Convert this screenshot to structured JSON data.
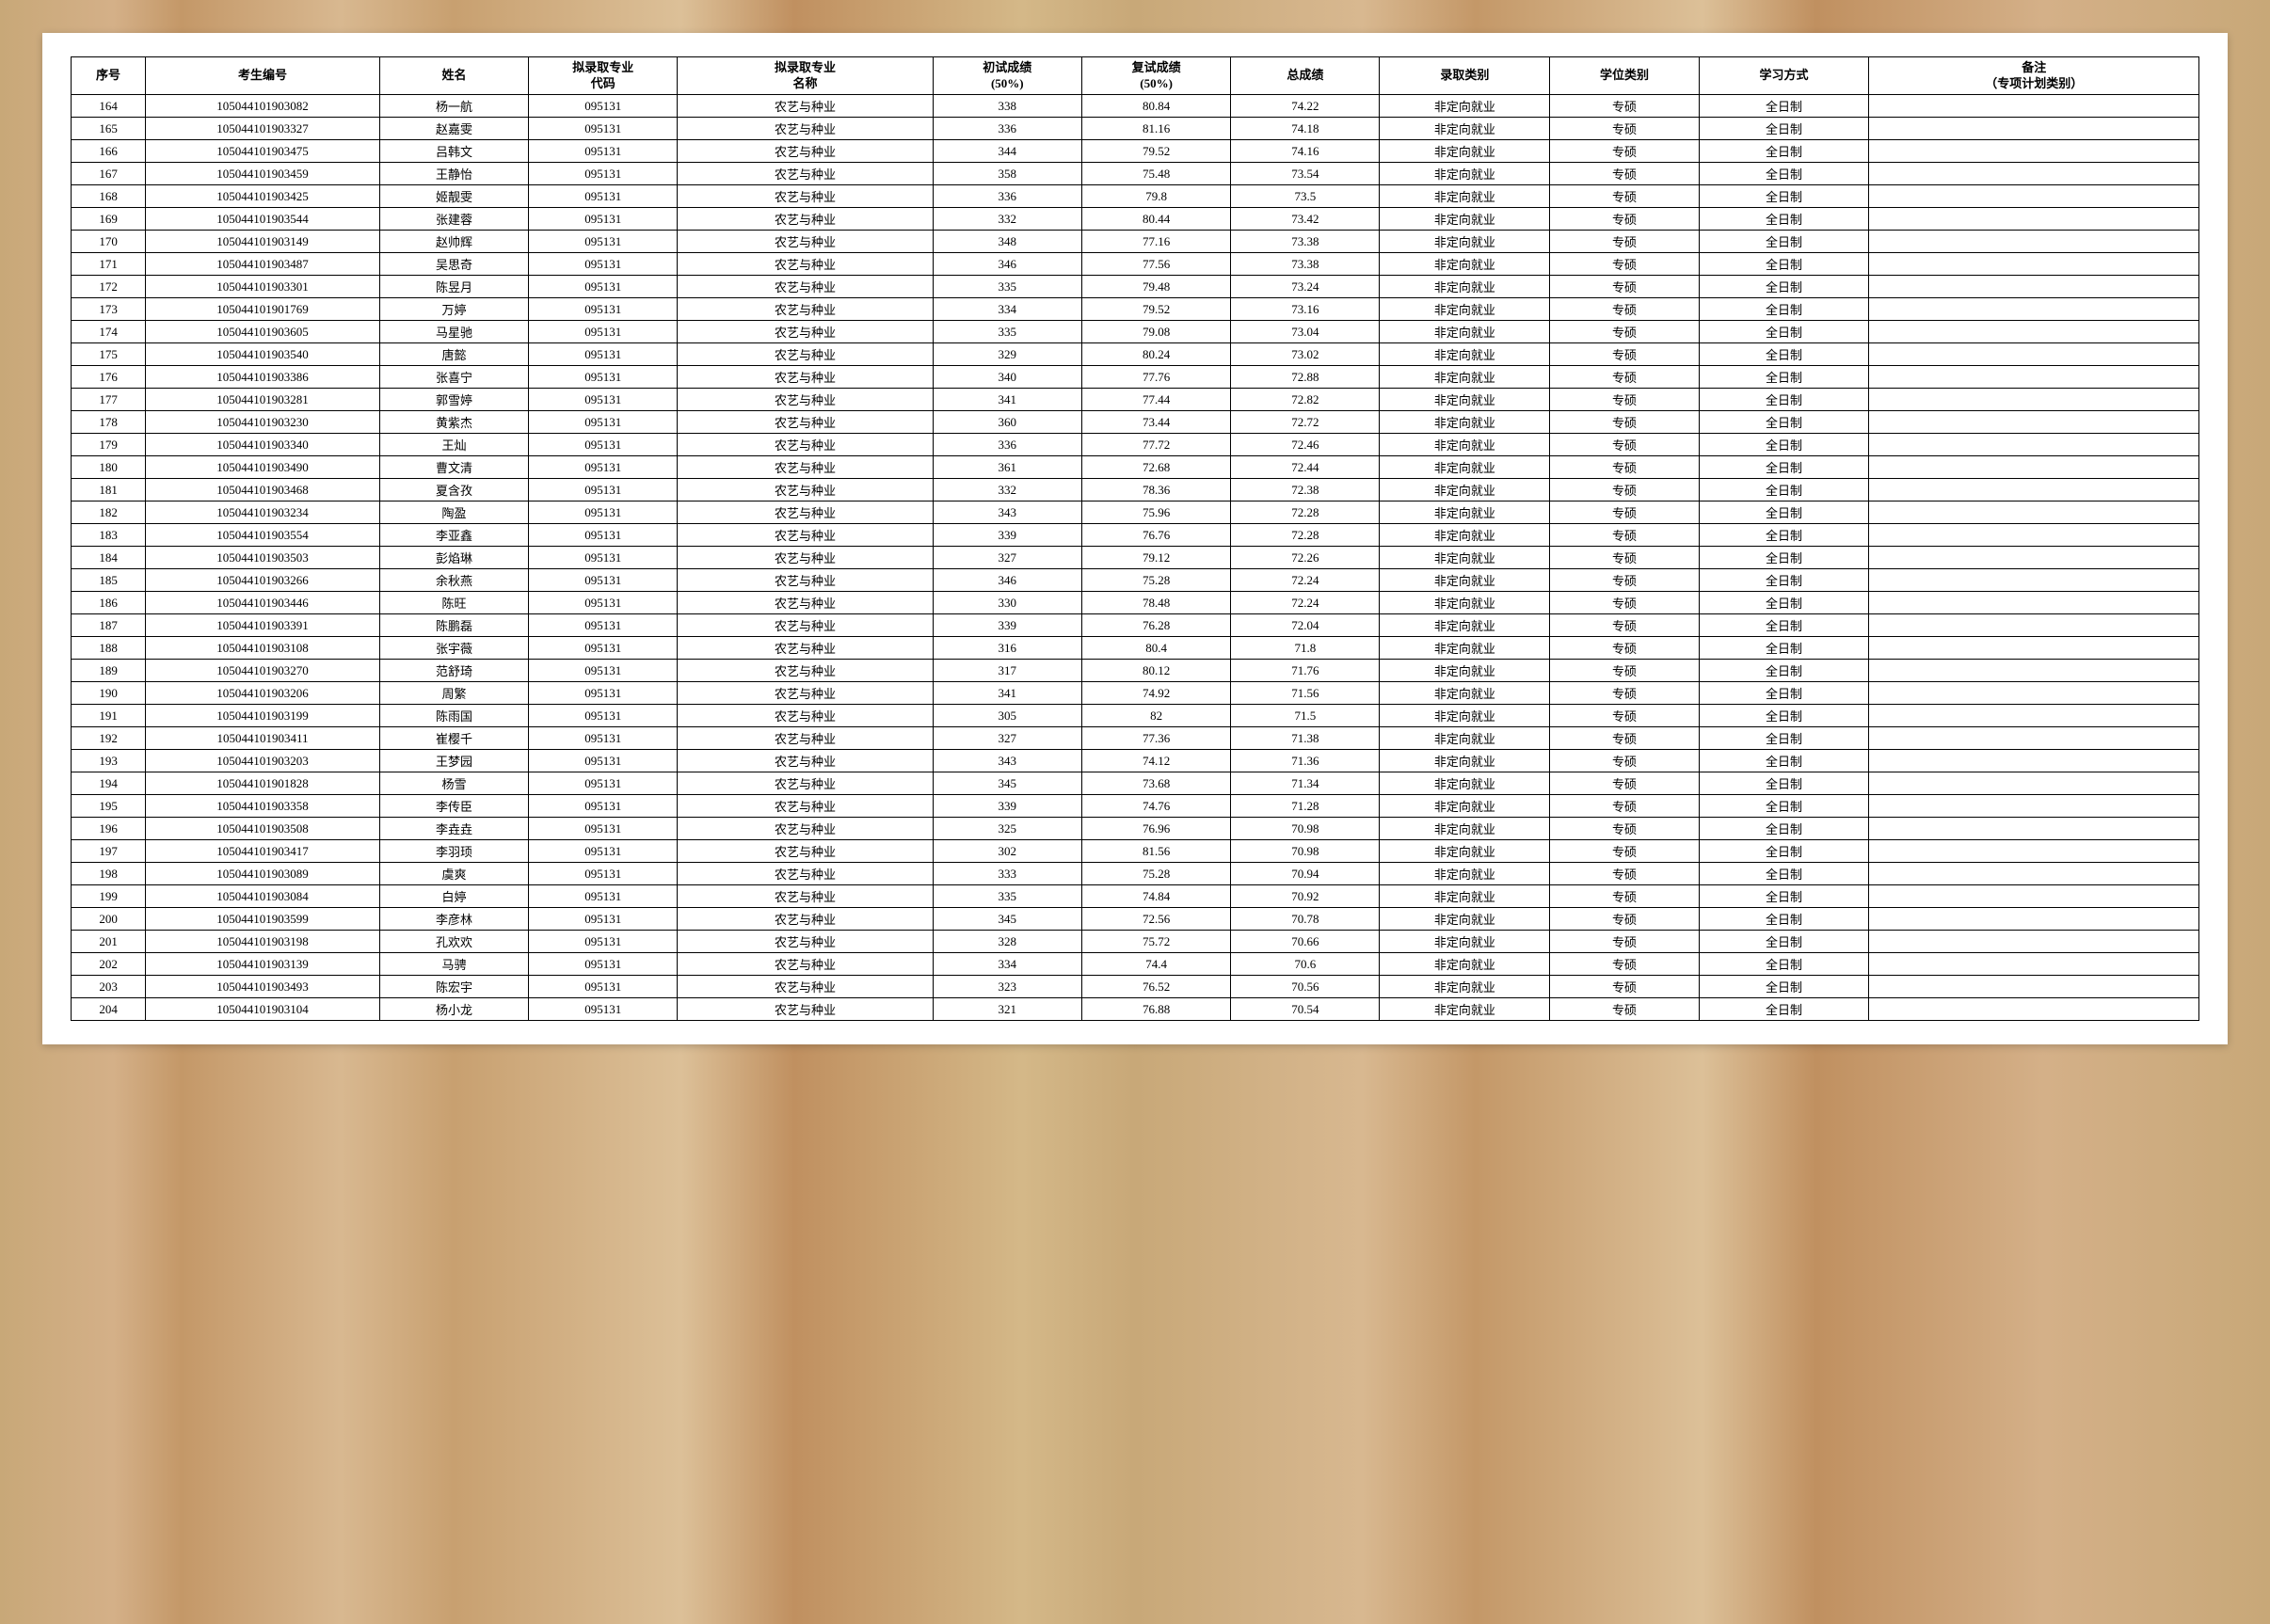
{
  "table": {
    "headers": {
      "seq": "序号",
      "examId": "考生编号",
      "name": "姓名",
      "majorCode": "拟录取专业\n代码",
      "majorName": "拟录取专业\n名称",
      "firstScore": "初试成绩\n(50%)",
      "secondScore": "复试成绩\n(50%)",
      "totalScore": "总成绩",
      "admitType": "录取类别",
      "degreeType": "学位类别",
      "studyMode": "学习方式",
      "remark": "备注\n（专项计划类别）"
    },
    "rows": [
      {
        "seq": "164",
        "id": "105044101903082",
        "name": "杨一航",
        "code": "095131",
        "major": "农艺与种业",
        "s1": "338",
        "s2": "80.84",
        "total": "74.22",
        "admit": "非定向就业",
        "degree": "专硕",
        "mode": "全日制",
        "remark": ""
      },
      {
        "seq": "165",
        "id": "105044101903327",
        "name": "赵嘉雯",
        "code": "095131",
        "major": "农艺与种业",
        "s1": "336",
        "s2": "81.16",
        "total": "74.18",
        "admit": "非定向就业",
        "degree": "专硕",
        "mode": "全日制",
        "remark": ""
      },
      {
        "seq": "166",
        "id": "105044101903475",
        "name": "吕韩文",
        "code": "095131",
        "major": "农艺与种业",
        "s1": "344",
        "s2": "79.52",
        "total": "74.16",
        "admit": "非定向就业",
        "degree": "专硕",
        "mode": "全日制",
        "remark": ""
      },
      {
        "seq": "167",
        "id": "105044101903459",
        "name": "王静怡",
        "code": "095131",
        "major": "农艺与种业",
        "s1": "358",
        "s2": "75.48",
        "total": "73.54",
        "admit": "非定向就业",
        "degree": "专硕",
        "mode": "全日制",
        "remark": ""
      },
      {
        "seq": "168",
        "id": "105044101903425",
        "name": "姬靓雯",
        "code": "095131",
        "major": "农艺与种业",
        "s1": "336",
        "s2": "79.8",
        "total": "73.5",
        "admit": "非定向就业",
        "degree": "专硕",
        "mode": "全日制",
        "remark": ""
      },
      {
        "seq": "169",
        "id": "105044101903544",
        "name": "张建蓉",
        "code": "095131",
        "major": "农艺与种业",
        "s1": "332",
        "s2": "80.44",
        "total": "73.42",
        "admit": "非定向就业",
        "degree": "专硕",
        "mode": "全日制",
        "remark": ""
      },
      {
        "seq": "170",
        "id": "105044101903149",
        "name": "赵帅辉",
        "code": "095131",
        "major": "农艺与种业",
        "s1": "348",
        "s2": "77.16",
        "total": "73.38",
        "admit": "非定向就业",
        "degree": "专硕",
        "mode": "全日制",
        "remark": ""
      },
      {
        "seq": "171",
        "id": "105044101903487",
        "name": "吴思奇",
        "code": "095131",
        "major": "农艺与种业",
        "s1": "346",
        "s2": "77.56",
        "total": "73.38",
        "admit": "非定向就业",
        "degree": "专硕",
        "mode": "全日制",
        "remark": ""
      },
      {
        "seq": "172",
        "id": "105044101903301",
        "name": "陈昱月",
        "code": "095131",
        "major": "农艺与种业",
        "s1": "335",
        "s2": "79.48",
        "total": "73.24",
        "admit": "非定向就业",
        "degree": "专硕",
        "mode": "全日制",
        "remark": ""
      },
      {
        "seq": "173",
        "id": "105044101901769",
        "name": "万婷",
        "code": "095131",
        "major": "农艺与种业",
        "s1": "334",
        "s2": "79.52",
        "total": "73.16",
        "admit": "非定向就业",
        "degree": "专硕",
        "mode": "全日制",
        "remark": ""
      },
      {
        "seq": "174",
        "id": "105044101903605",
        "name": "马星驰",
        "code": "095131",
        "major": "农艺与种业",
        "s1": "335",
        "s2": "79.08",
        "total": "73.04",
        "admit": "非定向就业",
        "degree": "专硕",
        "mode": "全日制",
        "remark": ""
      },
      {
        "seq": "175",
        "id": "105044101903540",
        "name": "唐懿",
        "code": "095131",
        "major": "农艺与种业",
        "s1": "329",
        "s2": "80.24",
        "total": "73.02",
        "admit": "非定向就业",
        "degree": "专硕",
        "mode": "全日制",
        "remark": ""
      },
      {
        "seq": "176",
        "id": "105044101903386",
        "name": "张喜宁",
        "code": "095131",
        "major": "农艺与种业",
        "s1": "340",
        "s2": "77.76",
        "total": "72.88",
        "admit": "非定向就业",
        "degree": "专硕",
        "mode": "全日制",
        "remark": ""
      },
      {
        "seq": "177",
        "id": "105044101903281",
        "name": "郭雪婷",
        "code": "095131",
        "major": "农艺与种业",
        "s1": "341",
        "s2": "77.44",
        "total": "72.82",
        "admit": "非定向就业",
        "degree": "专硕",
        "mode": "全日制",
        "remark": ""
      },
      {
        "seq": "178",
        "id": "105044101903230",
        "name": "黄紫杰",
        "code": "095131",
        "major": "农艺与种业",
        "s1": "360",
        "s2": "73.44",
        "total": "72.72",
        "admit": "非定向就业",
        "degree": "专硕",
        "mode": "全日制",
        "remark": ""
      },
      {
        "seq": "179",
        "id": "105044101903340",
        "name": "王灿",
        "code": "095131",
        "major": "农艺与种业",
        "s1": "336",
        "s2": "77.72",
        "total": "72.46",
        "admit": "非定向就业",
        "degree": "专硕",
        "mode": "全日制",
        "remark": ""
      },
      {
        "seq": "180",
        "id": "105044101903490",
        "name": "曹文清",
        "code": "095131",
        "major": "农艺与种业",
        "s1": "361",
        "s2": "72.68",
        "total": "72.44",
        "admit": "非定向就业",
        "degree": "专硕",
        "mode": "全日制",
        "remark": ""
      },
      {
        "seq": "181",
        "id": "105044101903468",
        "name": "夏含孜",
        "code": "095131",
        "major": "农艺与种业",
        "s1": "332",
        "s2": "78.36",
        "total": "72.38",
        "admit": "非定向就业",
        "degree": "专硕",
        "mode": "全日制",
        "remark": ""
      },
      {
        "seq": "182",
        "id": "105044101903234",
        "name": "陶盈",
        "code": "095131",
        "major": "农艺与种业",
        "s1": "343",
        "s2": "75.96",
        "total": "72.28",
        "admit": "非定向就业",
        "degree": "专硕",
        "mode": "全日制",
        "remark": ""
      },
      {
        "seq": "183",
        "id": "105044101903554",
        "name": "李亚鑫",
        "code": "095131",
        "major": "农艺与种业",
        "s1": "339",
        "s2": "76.76",
        "total": "72.28",
        "admit": "非定向就业",
        "degree": "专硕",
        "mode": "全日制",
        "remark": ""
      },
      {
        "seq": "184",
        "id": "105044101903503",
        "name": "彭焰琳",
        "code": "095131",
        "major": "农艺与种业",
        "s1": "327",
        "s2": "79.12",
        "total": "72.26",
        "admit": "非定向就业",
        "degree": "专硕",
        "mode": "全日制",
        "remark": ""
      },
      {
        "seq": "185",
        "id": "105044101903266",
        "name": "余秋燕",
        "code": "095131",
        "major": "农艺与种业",
        "s1": "346",
        "s2": "75.28",
        "total": "72.24",
        "admit": "非定向就业",
        "degree": "专硕",
        "mode": "全日制",
        "remark": ""
      },
      {
        "seq": "186",
        "id": "105044101903446",
        "name": "陈旺",
        "code": "095131",
        "major": "农艺与种业",
        "s1": "330",
        "s2": "78.48",
        "total": "72.24",
        "admit": "非定向就业",
        "degree": "专硕",
        "mode": "全日制",
        "remark": ""
      },
      {
        "seq": "187",
        "id": "105044101903391",
        "name": "陈鹏磊",
        "code": "095131",
        "major": "农艺与种业",
        "s1": "339",
        "s2": "76.28",
        "total": "72.04",
        "admit": "非定向就业",
        "degree": "专硕",
        "mode": "全日制",
        "remark": ""
      },
      {
        "seq": "188",
        "id": "105044101903108",
        "name": "张宇薇",
        "code": "095131",
        "major": "农艺与种业",
        "s1": "316",
        "s2": "80.4",
        "total": "71.8",
        "admit": "非定向就业",
        "degree": "专硕",
        "mode": "全日制",
        "remark": ""
      },
      {
        "seq": "189",
        "id": "105044101903270",
        "name": "范舒琦",
        "code": "095131",
        "major": "农艺与种业",
        "s1": "317",
        "s2": "80.12",
        "total": "71.76",
        "admit": "非定向就业",
        "degree": "专硕",
        "mode": "全日制",
        "remark": ""
      },
      {
        "seq": "190",
        "id": "105044101903206",
        "name": "周繁",
        "code": "095131",
        "major": "农艺与种业",
        "s1": "341",
        "s2": "74.92",
        "total": "71.56",
        "admit": "非定向就业",
        "degree": "专硕",
        "mode": "全日制",
        "remark": ""
      },
      {
        "seq": "191",
        "id": "105044101903199",
        "name": "陈雨国",
        "code": "095131",
        "major": "农艺与种业",
        "s1": "305",
        "s2": "82",
        "total": "71.5",
        "admit": "非定向就业",
        "degree": "专硕",
        "mode": "全日制",
        "remark": ""
      },
      {
        "seq": "192",
        "id": "105044101903411",
        "name": "崔樱千",
        "code": "095131",
        "major": "农艺与种业",
        "s1": "327",
        "s2": "77.36",
        "total": "71.38",
        "admit": "非定向就业",
        "degree": "专硕",
        "mode": "全日制",
        "remark": ""
      },
      {
        "seq": "193",
        "id": "105044101903203",
        "name": "王梦园",
        "code": "095131",
        "major": "农艺与种业",
        "s1": "343",
        "s2": "74.12",
        "total": "71.36",
        "admit": "非定向就业",
        "degree": "专硕",
        "mode": "全日制",
        "remark": ""
      },
      {
        "seq": "194",
        "id": "105044101901828",
        "name": "杨雪",
        "code": "095131",
        "major": "农艺与种业",
        "s1": "345",
        "s2": "73.68",
        "total": "71.34",
        "admit": "非定向就业",
        "degree": "专硕",
        "mode": "全日制",
        "remark": ""
      },
      {
        "seq": "195",
        "id": "105044101903358",
        "name": "李传臣",
        "code": "095131",
        "major": "农艺与种业",
        "s1": "339",
        "s2": "74.76",
        "total": "71.28",
        "admit": "非定向就业",
        "degree": "专硕",
        "mode": "全日制",
        "remark": ""
      },
      {
        "seq": "196",
        "id": "105044101903508",
        "name": "李垚垚",
        "code": "095131",
        "major": "农艺与种业",
        "s1": "325",
        "s2": "76.96",
        "total": "70.98",
        "admit": "非定向就业",
        "degree": "专硕",
        "mode": "全日制",
        "remark": ""
      },
      {
        "seq": "197",
        "id": "105044101903417",
        "name": "李羽顼",
        "code": "095131",
        "major": "农艺与种业",
        "s1": "302",
        "s2": "81.56",
        "total": "70.98",
        "admit": "非定向就业",
        "degree": "专硕",
        "mode": "全日制",
        "remark": ""
      },
      {
        "seq": "198",
        "id": "105044101903089",
        "name": "虞爽",
        "code": "095131",
        "major": "农艺与种业",
        "s1": "333",
        "s2": "75.28",
        "total": "70.94",
        "admit": "非定向就业",
        "degree": "专硕",
        "mode": "全日制",
        "remark": ""
      },
      {
        "seq": "199",
        "id": "105044101903084",
        "name": "白婷",
        "code": "095131",
        "major": "农艺与种业",
        "s1": "335",
        "s2": "74.84",
        "total": "70.92",
        "admit": "非定向就业",
        "degree": "专硕",
        "mode": "全日制",
        "remark": ""
      },
      {
        "seq": "200",
        "id": "105044101903599",
        "name": "李彦林",
        "code": "095131",
        "major": "农艺与种业",
        "s1": "345",
        "s2": "72.56",
        "total": "70.78",
        "admit": "非定向就业",
        "degree": "专硕",
        "mode": "全日制",
        "remark": ""
      },
      {
        "seq": "201",
        "id": "105044101903198",
        "name": "孔欢欢",
        "code": "095131",
        "major": "农艺与种业",
        "s1": "328",
        "s2": "75.72",
        "total": "70.66",
        "admit": "非定向就业",
        "degree": "专硕",
        "mode": "全日制",
        "remark": ""
      },
      {
        "seq": "202",
        "id": "105044101903139",
        "name": "马骋",
        "code": "095131",
        "major": "农艺与种业",
        "s1": "334",
        "s2": "74.4",
        "total": "70.6",
        "admit": "非定向就业",
        "degree": "专硕",
        "mode": "全日制",
        "remark": ""
      },
      {
        "seq": "203",
        "id": "105044101903493",
        "name": "陈宏宇",
        "code": "095131",
        "major": "农艺与种业",
        "s1": "323",
        "s2": "76.52",
        "total": "70.56",
        "admit": "非定向就业",
        "degree": "专硕",
        "mode": "全日制",
        "remark": ""
      },
      {
        "seq": "204",
        "id": "105044101903104",
        "name": "杨小龙",
        "code": "095131",
        "major": "农艺与种业",
        "s1": "321",
        "s2": "76.88",
        "total": "70.54",
        "admit": "非定向就业",
        "degree": "专硕",
        "mode": "全日制",
        "remark": ""
      }
    ],
    "colors": {
      "border": "#000000",
      "background": "#ffffff",
      "text": "#000000"
    },
    "font_size": 13
  }
}
